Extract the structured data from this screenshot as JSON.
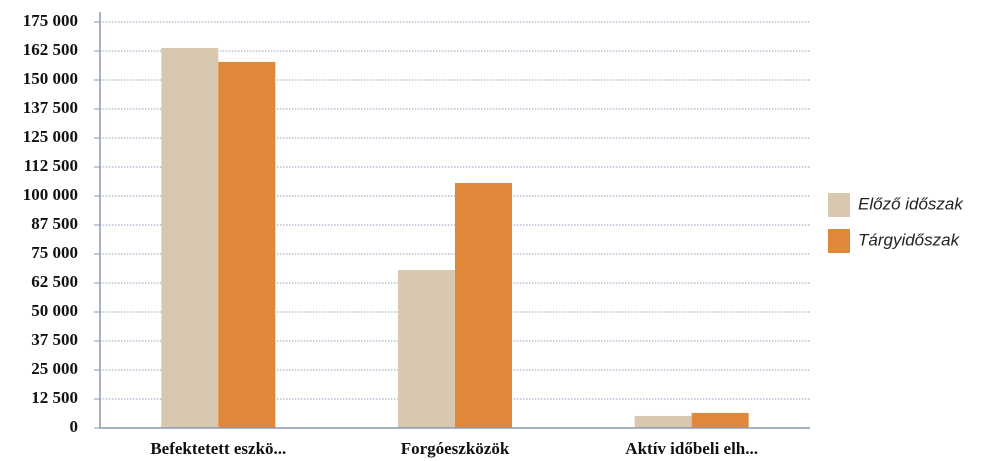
{
  "chart_data": {
    "type": "bar",
    "categories": [
      "Befektetett eszkö...",
      "Forgóeszközök",
      "Aktív időbeli elh..."
    ],
    "series": [
      {
        "name": "Előző időszak",
        "color": "#d8c8af",
        "values": [
          163800,
          68100,
          5200
        ]
      },
      {
        "name": "Tárgyidőszak",
        "color": "#e0883a",
        "values": [
          157800,
          105600,
          6500
        ]
      }
    ],
    "ylim": [
      0,
      175000
    ],
    "yticks": [
      0,
      {
        "value": 12500,
        "label": "12 500"
      },
      {
        "value": 25000,
        "label": "25 000"
      },
      {
        "value": 37500,
        "label": "37 500"
      },
      {
        "value": 50000,
        "label": "50 000"
      },
      {
        "value": 62500,
        "label": "62 500"
      },
      {
        "value": 75000,
        "label": "75 000"
      },
      {
        "value": 87500,
        "label": "87 500"
      },
      {
        "value": 100000,
        "label": "100 000"
      },
      {
        "value": 112500,
        "label": "112 500"
      },
      {
        "value": 125000,
        "label": "125 000"
      },
      {
        "value": 137500,
        "label": "137 500"
      },
      {
        "value": 150000,
        "label": "150 000"
      },
      {
        "value": 162500,
        "label": "162 500"
      },
      {
        "value": 175000,
        "label": "175 000"
      }
    ],
    "grid": true,
    "legend": "right"
  }
}
